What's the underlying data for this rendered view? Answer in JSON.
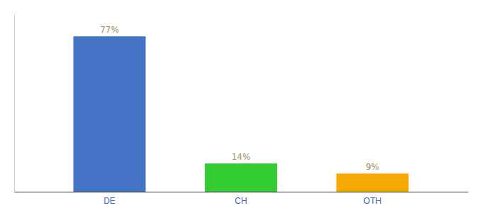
{
  "chart_data": {
    "type": "bar",
    "categories": [
      "DE",
      "CH",
      "OTH"
    ],
    "values": [
      77,
      14,
      9
    ],
    "value_labels": [
      "77%",
      "14%",
      "9%"
    ],
    "colors": [
      "#4472c4",
      "#33cc33",
      "#f5a800"
    ],
    "ylim": [
      0,
      88
    ],
    "data_labels": true,
    "tick_labels": "x"
  }
}
